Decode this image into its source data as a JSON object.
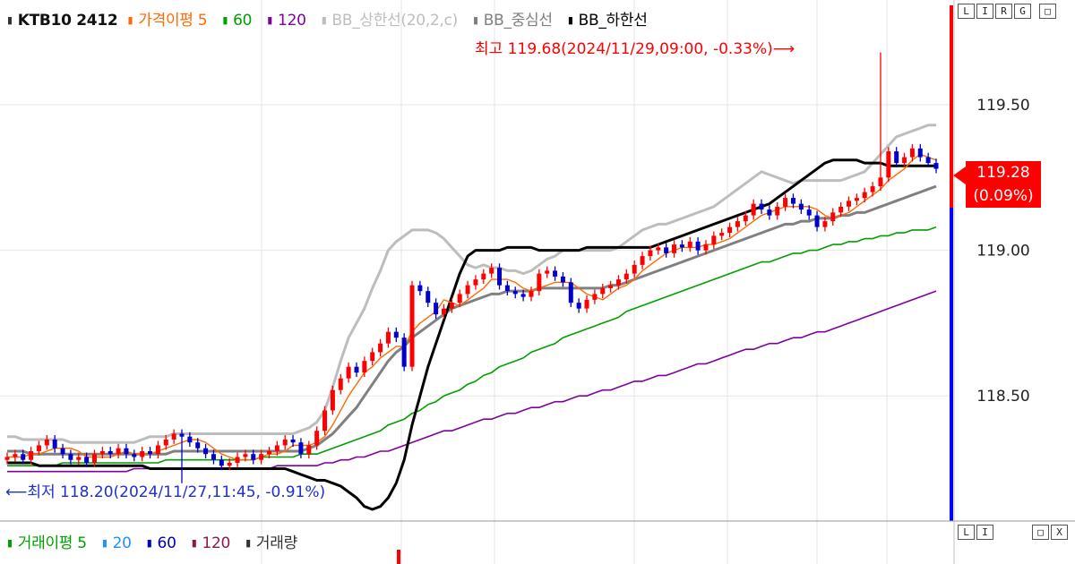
{
  "legend": {
    "symbol": "KTB10 2412",
    "items": [
      {
        "label": "가격이평 5",
        "color": "#ff6a00"
      },
      {
        "label": "60",
        "color": "#00a000"
      },
      {
        "label": "120",
        "color": "#8000a0"
      },
      {
        "label": "BB_상한선(20,2,c)",
        "color": "#bdbdbd"
      },
      {
        "label": "BB_중심선",
        "color": "#808080"
      },
      {
        "label": "BB_하한선",
        "color": "#000000"
      }
    ]
  },
  "volume_legend": {
    "items": [
      {
        "label": "거래이평 5",
        "color": "#00a000"
      },
      {
        "label": "20",
        "color": "#1e90ff"
      },
      {
        "label": "60",
        "color": "#0000c0"
      },
      {
        "label": "120",
        "color": "#8b1a4a"
      },
      {
        "label": "거래량",
        "color": "#333333"
      }
    ]
  },
  "buttons": {
    "price_panel": [
      "L",
      "I",
      "R",
      "G"
    ],
    "price_restore": "□",
    "volume_panel": [
      "L",
      "I"
    ],
    "volume_window": [
      "□",
      "X"
    ]
  },
  "current_price": {
    "value": "119.28",
    "change": "(0.09%)"
  },
  "annotations": {
    "high": "최고 119.68(2024/11/29,09:00, -0.33%)⟶",
    "low": "⟵최저 118.20(2024/11/27,11:45, -0.91%)"
  },
  "chart_data": {
    "type": "candlestick",
    "symbol": "KTB10 2412",
    "y_ticks": [
      "119.50",
      "119.00",
      "118.50"
    ],
    "ylim": [
      118.07,
      119.86
    ],
    "high": {
      "value": 119.68,
      "time": "2024/11/29,09:00",
      "change_pct": -0.33
    },
    "low": {
      "value": 118.2,
      "time": "2024/11/27,11:45",
      "change_pct": -0.91
    },
    "last": {
      "value": 119.28,
      "change_pct": 0.09
    },
    "colors": {
      "up": "#ff0000",
      "down": "#0000cc",
      "ma5": "#ff6a00",
      "ma60": "#00a000",
      "ma120": "#8000a0",
      "bb_upper": "#bdbdbd",
      "bb_mid": "#808080",
      "bb_lower": "#000000"
    },
    "closes": [
      118.29,
      118.3,
      118.28,
      118.31,
      118.33,
      118.35,
      118.32,
      118.3,
      118.28,
      118.29,
      118.27,
      118.3,
      118.31,
      118.3,
      118.32,
      118.3,
      118.29,
      118.31,
      118.3,
      118.33,
      118.35,
      118.37,
      118.36,
      118.34,
      118.32,
      118.3,
      118.28,
      118.26,
      118.27,
      118.29,
      118.3,
      118.28,
      118.3,
      118.31,
      118.33,
      118.35,
      118.34,
      118.3,
      118.33,
      118.38,
      118.45,
      118.52,
      118.56,
      118.6,
      118.58,
      118.62,
      118.65,
      118.68,
      118.72,
      118.7,
      118.6,
      118.88,
      118.86,
      118.82,
      118.78,
      118.8,
      118.82,
      118.85,
      118.88,
      118.9,
      118.92,
      118.94,
      118.88,
      118.86,
      118.85,
      118.84,
      118.86,
      118.92,
      118.93,
      118.91,
      118.89,
      118.82,
      118.8,
      118.83,
      118.85,
      118.87,
      118.88,
      118.9,
      118.92,
      118.95,
      118.98,
      119.0,
      119.01,
      118.99,
      119.02,
      119.01,
      119.03,
      119.0,
      119.02,
      119.05,
      119.06,
      119.08,
      119.1,
      119.12,
      119.16,
      119.14,
      119.12,
      119.15,
      119.18,
      119.16,
      119.14,
      119.12,
      119.08,
      119.1,
      119.13,
      119.15,
      119.17,
      119.18,
      119.2,
      119.22,
      119.25,
      119.34,
      119.3,
      119.32,
      119.35,
      119.32,
      119.3,
      119.28
    ],
    "ma5": [
      118.29,
      118.29,
      118.29,
      118.3,
      118.3,
      118.31,
      118.32,
      118.32,
      118.32,
      118.31,
      118.29,
      118.29,
      118.29,
      118.29,
      118.3,
      118.31,
      118.3,
      118.3,
      118.3,
      118.31,
      118.32,
      118.33,
      118.34,
      118.35,
      118.35,
      118.34,
      118.32,
      118.3,
      118.29,
      118.28,
      118.28,
      118.28,
      118.29,
      118.3,
      118.3,
      118.31,
      118.33,
      118.33,
      118.33,
      118.34,
      118.36,
      118.4,
      118.45,
      118.5,
      118.54,
      118.58,
      118.6,
      118.63,
      118.65,
      118.67,
      118.67,
      118.72,
      118.75,
      118.77,
      118.79,
      118.83,
      118.82,
      118.81,
      118.83,
      118.85,
      118.87,
      118.9,
      118.9,
      118.9,
      118.89,
      118.87,
      118.86,
      118.87,
      118.88,
      118.89,
      118.89,
      118.89,
      118.87,
      118.85,
      118.84,
      118.83,
      118.85,
      118.87,
      118.88,
      118.9,
      118.93,
      118.95,
      118.97,
      118.99,
      119.0,
      119.01,
      119.01,
      119.01,
      119.02,
      119.02,
      119.03,
      119.04,
      119.06,
      119.08,
      119.1,
      119.12,
      119.13,
      119.14,
      119.15,
      119.15,
      119.15,
      119.15,
      119.14,
      119.12,
      119.11,
      119.12,
      119.13,
      119.15,
      119.17,
      119.19,
      119.21,
      119.24,
      119.26,
      119.28,
      119.31,
      119.33,
      119.32,
      119.31
    ],
    "ma60": [
      118.26,
      118.26,
      118.26,
      118.26,
      118.26,
      118.26,
      118.26,
      118.27,
      118.27,
      118.27,
      118.27,
      118.27,
      118.27,
      118.27,
      118.27,
      118.27,
      118.27,
      118.27,
      118.27,
      118.27,
      118.28,
      118.28,
      118.28,
      118.28,
      118.28,
      118.28,
      118.28,
      118.28,
      118.28,
      118.28,
      118.28,
      118.28,
      118.29,
      118.29,
      118.29,
      118.29,
      118.29,
      118.3,
      118.3,
      118.3,
      118.31,
      118.32,
      118.33,
      118.34,
      118.35,
      118.36,
      118.37,
      118.38,
      118.4,
      118.41,
      118.42,
      118.44,
      118.45,
      118.47,
      118.48,
      118.5,
      118.51,
      118.52,
      118.54,
      118.55,
      118.57,
      118.58,
      118.6,
      118.61,
      118.62,
      118.63,
      118.65,
      118.66,
      118.67,
      118.68,
      118.7,
      118.71,
      118.72,
      118.73,
      118.74,
      118.75,
      118.76,
      118.77,
      118.79,
      118.8,
      118.81,
      118.82,
      118.83,
      118.84,
      118.85,
      118.86,
      118.87,
      118.88,
      118.89,
      118.9,
      118.91,
      118.92,
      118.93,
      118.94,
      118.95,
      118.96,
      118.96,
      118.97,
      118.98,
      118.99,
      118.99,
      119.0,
      119.0,
      119.01,
      119.02,
      119.02,
      119.03,
      119.03,
      119.04,
      119.04,
      119.05,
      119.05,
      119.06,
      119.06,
      119.07,
      119.07,
      119.07,
      119.08
    ],
    "ma120": [
      118.24,
      118.24,
      118.24,
      118.24,
      118.24,
      118.24,
      118.24,
      118.24,
      118.24,
      118.24,
      118.24,
      118.24,
      118.24,
      118.24,
      118.24,
      118.24,
      118.25,
      118.25,
      118.25,
      118.25,
      118.25,
      118.25,
      118.25,
      118.25,
      118.25,
      118.25,
      118.25,
      118.25,
      118.25,
      118.25,
      118.25,
      118.25,
      118.25,
      118.25,
      118.26,
      118.26,
      118.26,
      118.26,
      118.26,
      118.26,
      118.27,
      118.27,
      118.28,
      118.28,
      118.29,
      118.29,
      118.3,
      118.31,
      118.31,
      118.32,
      118.33,
      118.34,
      118.35,
      118.36,
      118.37,
      118.38,
      118.38,
      118.39,
      118.4,
      118.41,
      118.42,
      118.42,
      118.43,
      118.44,
      118.44,
      118.45,
      118.46,
      118.46,
      118.47,
      118.48,
      118.48,
      118.49,
      118.5,
      118.5,
      118.51,
      118.52,
      118.52,
      118.53,
      118.54,
      118.55,
      118.55,
      118.56,
      118.57,
      118.57,
      118.58,
      118.59,
      118.6,
      118.61,
      118.61,
      118.62,
      118.63,
      118.64,
      118.65,
      118.66,
      118.66,
      118.67,
      118.68,
      118.68,
      118.69,
      118.7,
      118.7,
      118.71,
      118.72,
      118.72,
      118.73,
      118.74,
      118.75,
      118.76,
      118.77,
      118.78,
      118.79,
      118.8,
      118.81,
      118.82,
      118.83,
      118.84,
      118.85,
      118.86
    ],
    "bb_upper": [
      118.36,
      118.36,
      118.35,
      118.35,
      118.35,
      118.35,
      118.35,
      118.35,
      118.34,
      118.34,
      118.34,
      118.34,
      118.34,
      118.34,
      118.34,
      118.34,
      118.34,
      118.35,
      118.36,
      118.36,
      118.36,
      118.37,
      118.37,
      118.37,
      118.37,
      118.37,
      118.37,
      118.37,
      118.37,
      118.37,
      118.37,
      118.37,
      118.37,
      118.37,
      118.37,
      118.37,
      118.37,
      118.38,
      118.39,
      118.41,
      118.45,
      118.53,
      118.62,
      118.7,
      118.75,
      118.8,
      118.87,
      118.93,
      119.0,
      119.03,
      119.05,
      119.07,
      119.07,
      119.07,
      119.06,
      119.04,
      119.01,
      118.98,
      118.95,
      118.94,
      118.95,
      118.94,
      118.94,
      118.93,
      118.93,
      118.92,
      118.93,
      118.95,
      118.97,
      118.98,
      119.0,
      119.0,
      119.0,
      119.0,
      119.0,
      119.0,
      119.0,
      119.01,
      119.03,
      119.05,
      119.07,
      119.08,
      119.09,
      119.09,
      119.1,
      119.11,
      119.12,
      119.13,
      119.14,
      119.15,
      119.17,
      119.19,
      119.21,
      119.23,
      119.25,
      119.27,
      119.26,
      119.25,
      119.24,
      119.23,
      119.24,
      119.24,
      119.24,
      119.24,
      119.24,
      119.24,
      119.25,
      119.26,
      119.27,
      119.3,
      119.33,
      119.36,
      119.39,
      119.4,
      119.41,
      119.42,
      119.43,
      119.43
    ],
    "bb_mid": [
      118.31,
      118.31,
      118.31,
      118.3,
      118.3,
      118.3,
      118.3,
      118.3,
      118.3,
      118.3,
      118.3,
      118.3,
      118.3,
      118.3,
      118.3,
      118.3,
      118.3,
      118.3,
      118.3,
      118.3,
      118.3,
      118.31,
      118.31,
      118.31,
      118.31,
      118.31,
      118.31,
      118.31,
      118.31,
      118.31,
      118.31,
      118.31,
      118.31,
      118.31,
      118.31,
      118.31,
      118.31,
      118.31,
      118.32,
      118.33,
      118.35,
      118.37,
      118.4,
      118.43,
      118.46,
      118.5,
      118.54,
      118.58,
      118.62,
      118.65,
      118.67,
      118.7,
      118.72,
      118.74,
      118.76,
      118.78,
      118.8,
      118.81,
      118.82,
      118.83,
      118.84,
      118.85,
      118.85,
      118.86,
      118.86,
      118.86,
      118.86,
      118.87,
      118.87,
      118.87,
      118.87,
      118.87,
      118.87,
      118.87,
      118.87,
      118.87,
      118.88,
      118.88,
      118.89,
      118.9,
      118.91,
      118.92,
      118.93,
      118.94,
      118.95,
      118.96,
      118.97,
      118.98,
      118.99,
      119.0,
      119.01,
      119.02,
      119.03,
      119.04,
      119.05,
      119.06,
      119.07,
      119.08,
      119.09,
      119.09,
      119.1,
      119.1,
      119.11,
      119.11,
      119.11,
      119.12,
      119.12,
      119.13,
      119.13,
      119.14,
      119.15,
      119.16,
      119.17,
      119.18,
      119.19,
      119.2,
      119.21,
      119.22
    ],
    "bb_lower": [
      118.27,
      118.27,
      118.27,
      118.27,
      118.26,
      118.26,
      118.26,
      118.26,
      118.26,
      118.26,
      118.26,
      118.26,
      118.26,
      118.26,
      118.26,
      118.26,
      118.26,
      118.26,
      118.25,
      118.25,
      118.25,
      118.25,
      118.25,
      118.25,
      118.25,
      118.25,
      118.25,
      118.25,
      118.25,
      118.25,
      118.25,
      118.25,
      118.25,
      118.25,
      118.25,
      118.25,
      118.24,
      118.23,
      118.22,
      118.21,
      118.21,
      118.2,
      118.19,
      118.17,
      118.15,
      118.12,
      118.11,
      118.12,
      118.15,
      118.2,
      118.28,
      118.4,
      118.5,
      118.6,
      118.68,
      118.76,
      118.84,
      118.92,
      118.98,
      119.0,
      119.0,
      119.0,
      119.0,
      119.01,
      119.01,
      119.01,
      119.01,
      119.0,
      119.0,
      119.0,
      119.0,
      119.0,
      119.0,
      119.01,
      119.01,
      119.01,
      119.01,
      119.01,
      119.01,
      119.01,
      119.01,
      119.01,
      119.02,
      119.03,
      119.04,
      119.05,
      119.06,
      119.07,
      119.08,
      119.09,
      119.1,
      119.11,
      119.12,
      119.13,
      119.14,
      119.15,
      119.16,
      119.18,
      119.2,
      119.22,
      119.24,
      119.26,
      119.28,
      119.3,
      119.31,
      119.31,
      119.31,
      119.31,
      119.3,
      119.3,
      119.3,
      119.29,
      119.29,
      119.29,
      119.29,
      119.29,
      119.29,
      119.29
    ]
  }
}
